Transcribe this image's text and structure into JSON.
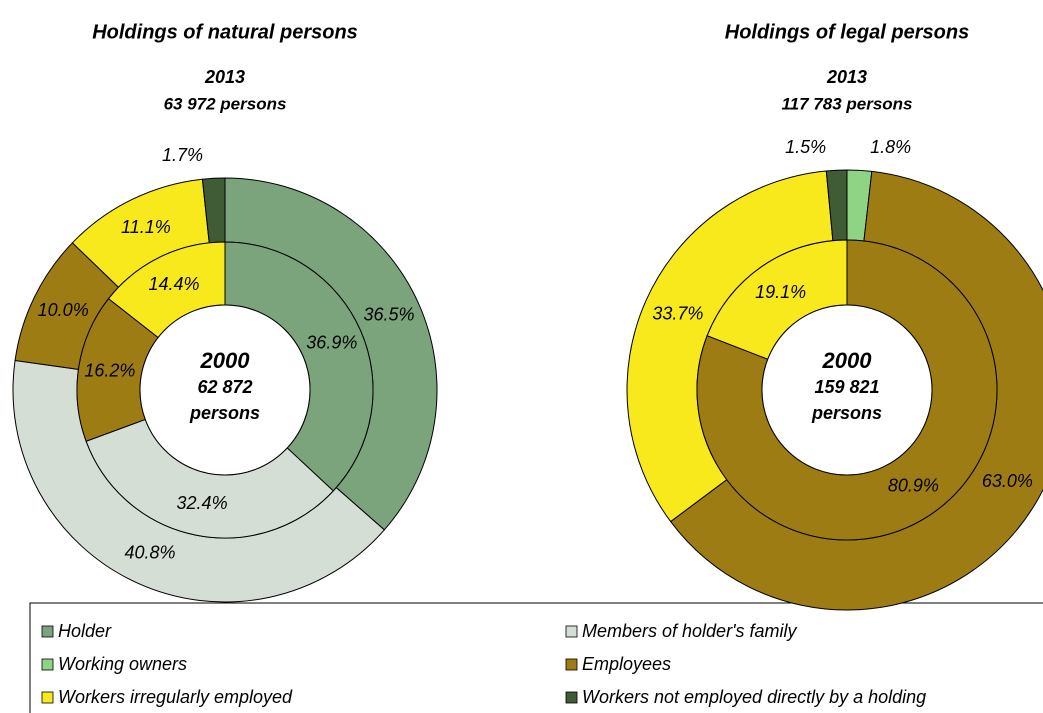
{
  "chart_data": [
    {
      "type": "pie",
      "title": "Holdings of natural persons",
      "series": [
        {
          "name": "2013",
          "totals": [
            "63 972 persons"
          ],
          "values": [
            36.5,
            40.8,
            10.0,
            11.1,
            1.7
          ],
          "value_labels": [
            "36.5%",
            "40.8%",
            "10.0%",
            "11.1%",
            "1.7%"
          ],
          "colors": [
            "#7ba37c",
            "#d5ded4",
            "#9e7c14",
            "#f8e91c",
            "#3f5c36"
          ]
        },
        {
          "name": "2000",
          "totals": [
            "62 872",
            "persons"
          ],
          "values": [
            36.9,
            32.4,
            16.2,
            14.4
          ],
          "value_labels": [
            "36.9%",
            "32.4%",
            "16.2%",
            "14.4%"
          ],
          "colors": [
            "#7ba37c",
            "#d5ded4",
            "#9e7c14",
            "#f8e91c"
          ]
        }
      ]
    },
    {
      "type": "pie",
      "title": "Holdings of legal persons",
      "series": [
        {
          "name": "2013",
          "totals": [
            "117 783 persons"
          ],
          "values": [
            1.8,
            63.0,
            33.7,
            1.5
          ],
          "value_labels": [
            "1.8%",
            "63.0%",
            "33.7%",
            "1.5%"
          ],
          "colors": [
            "#8fd484",
            "#9e7c14",
            "#f8e91c",
            "#3f5c36"
          ]
        },
        {
          "name": "2000",
          "totals": [
            "159 821",
            "persons"
          ],
          "values": [
            80.9,
            19.1
          ],
          "value_labels": [
            "80.9%",
            "19.1%"
          ],
          "colors": [
            "#9e7c14",
            "#f8e91c"
          ]
        }
      ]
    }
  ],
  "legend": {
    "entries": [
      {
        "name": "Holder",
        "color": "#7ba37c"
      },
      {
        "name": "Members of holder's family",
        "color": "#d5ded4"
      },
      {
        "name": "Working owners",
        "color": "#8fd484"
      },
      {
        "name": "Employees",
        "color": "#9e7c14"
      },
      {
        "name": "Workers irregularly employed",
        "color": "#f8e91c"
      },
      {
        "name": "Workers not employed directly by a holding",
        "color": "#3f5c36"
      }
    ]
  }
}
